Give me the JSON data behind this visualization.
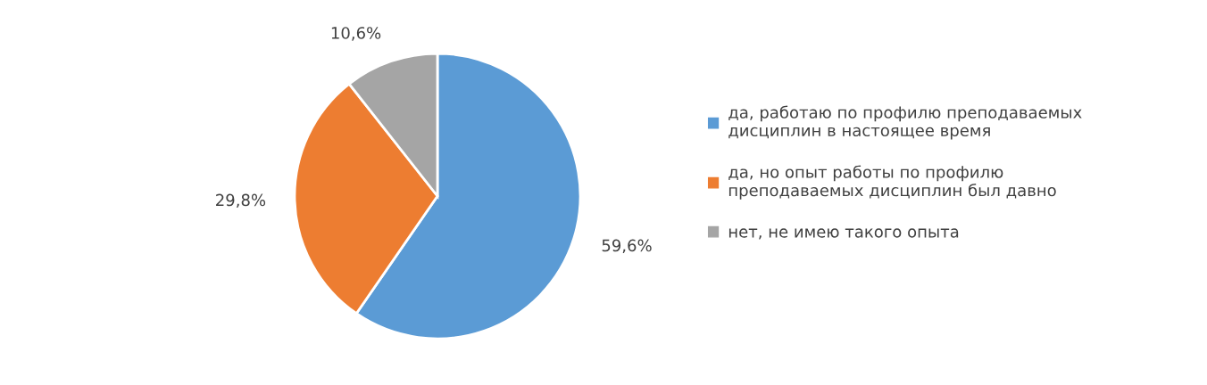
{
  "chart_data": {
    "type": "pie",
    "categories": [
      "да, работаю по профилю преподаваемых дисциплин в настоящее время",
      "да, но опыт работы по профилю преподаваемых дисциплин был давно",
      "нет, не имею такого опыта"
    ],
    "values": [
      59.6,
      29.8,
      10.6
    ],
    "value_labels": [
      "59,6%",
      "29,8%",
      "10,6%"
    ],
    "colors": [
      "#5b9bd5",
      "#ed7d31",
      "#a5a5a5"
    ],
    "legend": "right"
  }
}
